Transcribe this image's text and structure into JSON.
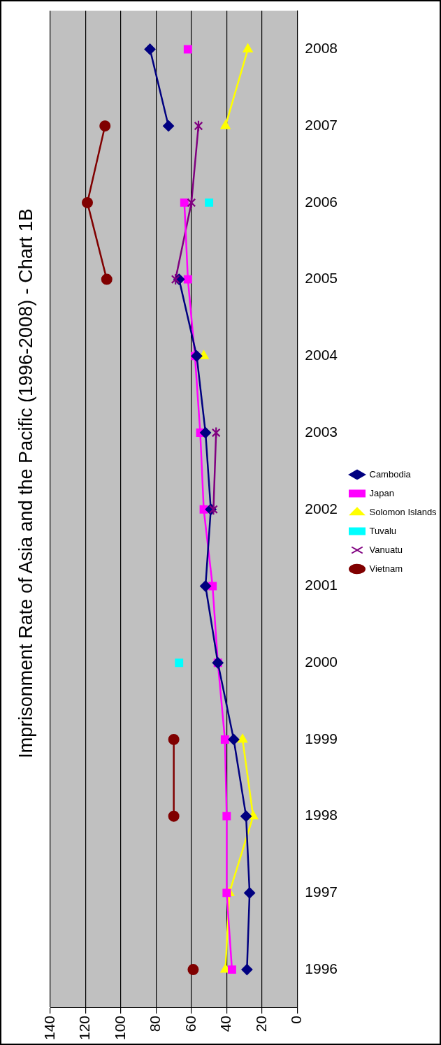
{
  "chart_data": {
    "type": "line",
    "orientation": "horizontal",
    "title": "Imprisonment Rate of Asia and the Pacific (1996-2008) - Chart 1B",
    "categories": [
      "2008",
      "2007",
      "2006",
      "2005",
      "2004",
      "2003",
      "2002",
      "2001",
      "2000",
      "1999",
      "1998",
      "1997",
      "1996"
    ],
    "series": [
      {
        "name": "Cambodia",
        "color": "#000080",
        "marker": "diamond",
        "values": [
          83.5,
          73,
          null,
          67,
          57,
          52,
          49,
          52,
          45,
          36,
          29,
          27,
          28.5
        ]
      },
      {
        "name": "Japan",
        "color": "#ff00ff",
        "marker": "square",
        "values": [
          62,
          null,
          64,
          62,
          58,
          55,
          53,
          48,
          45,
          41,
          40,
          40,
          37
        ]
      },
      {
        "name": "Solomon Islands",
        "color": "#ffff00",
        "marker": "triangle",
        "values": [
          28,
          40.7,
          null,
          null,
          53,
          null,
          null,
          null,
          null,
          31,
          25,
          38.5,
          40.7
        ]
      },
      {
        "name": "Tuvalu",
        "type": "scatter",
        "color": "#00ffff",
        "marker": "square",
        "values": [
          null,
          null,
          50,
          null,
          null,
          null,
          null,
          null,
          67,
          null,
          null,
          null,
          null
        ]
      },
      {
        "name": "Vanuatu",
        "color": "#800080",
        "marker": "cross",
        "values": [
          null,
          56,
          60,
          69,
          null,
          46,
          47.5,
          null,
          null,
          null,
          null,
          null,
          null
        ]
      },
      {
        "name": "Vietnam",
        "color": "#800000",
        "marker": "circle",
        "values": [
          null,
          109,
          119,
          108,
          null,
          null,
          null,
          null,
          null,
          70,
          70,
          null,
          59
        ]
      }
    ],
    "xlim": [
      140,
      0
    ],
    "xticks": [
      140,
      120,
      100,
      80,
      60,
      40,
      20,
      0
    ],
    "grid": "x",
    "legend": "right"
  }
}
